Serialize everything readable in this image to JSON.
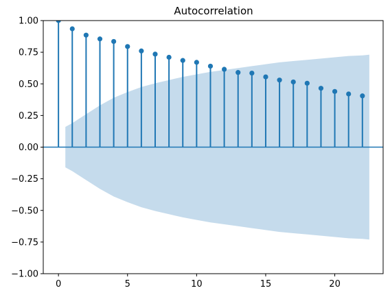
{
  "chart_data": {
    "type": "stem",
    "title": "Autocorrelation",
    "xlabel": "",
    "ylabel": "",
    "xlim": [
      -1.1,
      23.5
    ],
    "ylim": [
      -1.0,
      1.0
    ],
    "x_ticks": [
      0,
      5,
      10,
      15,
      20
    ],
    "x_tick_labels": [
      "0",
      "5",
      "10",
      "15",
      "20"
    ],
    "y_ticks": [
      1.0,
      0.75,
      0.5,
      0.25,
      0.0,
      -0.25,
      -0.5,
      -0.75,
      -1.0
    ],
    "y_tick_labels": [
      "1.00",
      "0.75",
      "0.50",
      "0.25",
      "0.00",
      "−0.25",
      "−0.50",
      "−0.75",
      "−1.00"
    ],
    "grid": false,
    "legend": "none",
    "lags": [
      0,
      1,
      2,
      3,
      4,
      5,
      6,
      7,
      8,
      9,
      10,
      11,
      12,
      13,
      14,
      15,
      16,
      17,
      18,
      19,
      20,
      21,
      22
    ],
    "acf": [
      1.0,
      0.935,
      0.885,
      0.855,
      0.835,
      0.795,
      0.76,
      0.735,
      0.71,
      0.685,
      0.67,
      0.64,
      0.615,
      0.59,
      0.585,
      0.555,
      0.53,
      0.515,
      0.505,
      0.465,
      0.44,
      0.42,
      0.405
    ],
    "confidence_band": {
      "x": [
        0.5,
        1,
        2,
        3,
        4,
        5,
        6,
        7,
        8,
        9,
        10,
        11,
        12,
        13,
        14,
        15,
        16,
        17,
        18,
        19,
        20,
        21,
        22,
        22.5
      ],
      "upper": [
        0.16,
        0.19,
        0.26,
        0.33,
        0.39,
        0.435,
        0.475,
        0.505,
        0.53,
        0.555,
        0.575,
        0.595,
        0.61,
        0.625,
        0.64,
        0.655,
        0.67,
        0.68,
        0.69,
        0.7,
        0.71,
        0.72,
        0.725,
        0.73
      ]
    },
    "colors": {
      "stem": "#1f77b4",
      "band": "#c5dbec",
      "zero_line": "#1f77b4",
      "axes": "#000000"
    }
  }
}
